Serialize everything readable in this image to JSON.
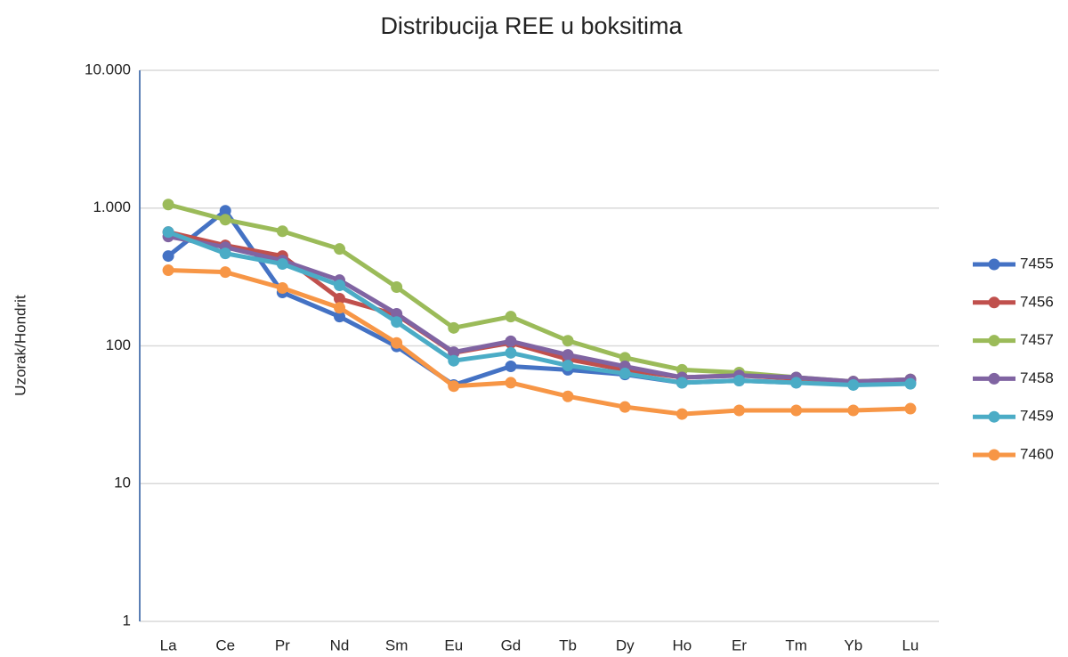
{
  "chart_data": {
    "type": "line",
    "title": "Distribucija REE u boksitima",
    "y_label": "Uzorak/Hondrit",
    "categories": [
      "La",
      "Ce",
      "Pr",
      "Nd",
      "Sm",
      "Eu",
      "Gd",
      "Tb",
      "Dy",
      "Ho",
      "Er",
      "Tm",
      "Yb",
      "Lu"
    ],
    "y_scale": "log",
    "ylim": [
      1,
      10000
    ],
    "yticks": [
      1,
      10,
      100,
      {
        "value": 1000,
        "label": "1.000"
      },
      {
        "value": 10000,
        "label": "10.000"
      }
    ],
    "grid": true,
    "legend": "right",
    "series": [
      {
        "name": "7455",
        "color": "#4472c4",
        "values": [
          449,
          957,
          244,
          163,
          99,
          52,
          71,
          67,
          62,
          54,
          56,
          54,
          54,
          54
        ]
      },
      {
        "name": "7456",
        "color": "#c0504d",
        "values": [
          670,
          536,
          449,
          220,
          168,
          89,
          105,
          80,
          67,
          59,
          61,
          58,
          55,
          57
        ]
      },
      {
        "name": "7457",
        "color": "#9bbb59",
        "values": [
          1061,
          824,
          679,
          505,
          267,
          135,
          163,
          109,
          82,
          67,
          64,
          59,
          55,
          57
        ]
      },
      {
        "name": "7458",
        "color": "#8064a2",
        "values": [
          622,
          520,
          416,
          300,
          171,
          90,
          108,
          86,
          71,
          59,
          61,
          59,
          55,
          57
        ]
      },
      {
        "name": "7459",
        "color": "#4bacc6",
        "values": [
          670,
          469,
          393,
          275,
          149,
          78,
          89,
          72,
          63,
          54,
          56,
          54,
          52,
          53
        ]
      },
      {
        "name": "7460",
        "color": "#f79646",
        "values": [
          354,
          343,
          263,
          189,
          105,
          51,
          54,
          43,
          36,
          32,
          34,
          34,
          34,
          35
        ]
      }
    ]
  }
}
